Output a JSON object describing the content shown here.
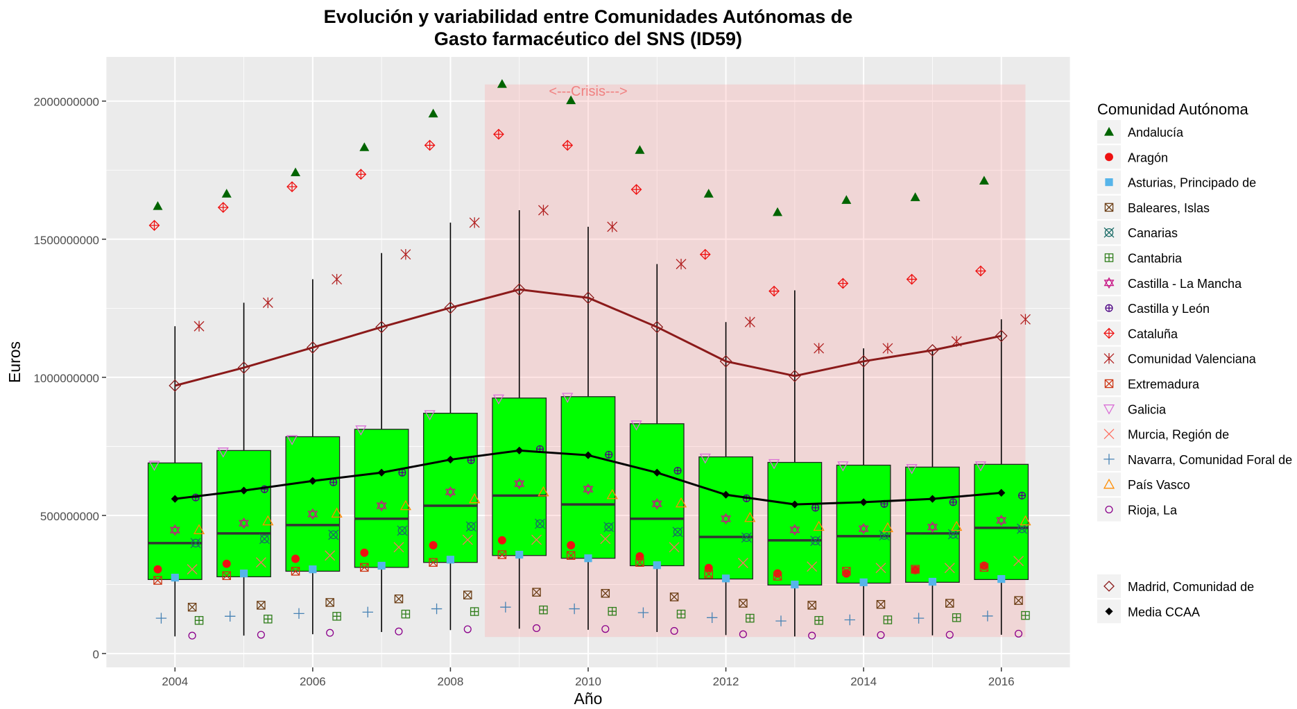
{
  "chart_data": {
    "type": "boxplot",
    "title_line1": "Evolución y variabilidad entre Comunidades Autónomas de",
    "title_line2": "Gasto farmacéutico del SNS (ID59)",
    "xlabel": "Año",
    "ylabel": "Euros",
    "xlim": [
      2003.0,
      2017.0
    ],
    "ylim": [
      -50000000,
      2160000000
    ],
    "x_ticks": [
      2004,
      2006,
      2008,
      2010,
      2012,
      2014,
      2016
    ],
    "y_ticks": [
      0,
      500000000,
      1000000000,
      1500000000,
      2000000000
    ],
    "y_tick_labels": [
      "0",
      "500000000",
      "1000000000",
      "1500000000",
      "2000000000"
    ],
    "crisis": {
      "label": "<---Crisis--->",
      "x_start": 2008.5,
      "x_end": 2016.35,
      "y_min": 60000000,
      "y_max": 2060000000
    },
    "years": [
      2004,
      2005,
      2006,
      2007,
      2008,
      2009,
      2010,
      2011,
      2012,
      2013,
      2014,
      2015,
      2016
    ],
    "boxes": [
      {
        "q1": 268000000,
        "median": 400000000,
        "q3": 690000000,
        "lower": 62000000,
        "upper": 1185000000
      },
      {
        "q1": 278000000,
        "median": 435000000,
        "q3": 735000000,
        "lower": 65000000,
        "upper": 1270000000
      },
      {
        "q1": 298000000,
        "median": 465000000,
        "q3": 785000000,
        "lower": 70000000,
        "upper": 1355000000
      },
      {
        "q1": 312000000,
        "median": 488000000,
        "q3": 812000000,
        "lower": 78000000,
        "upper": 1450000000
      },
      {
        "q1": 330000000,
        "median": 535000000,
        "q3": 870000000,
        "lower": 85000000,
        "upper": 1560000000
      },
      {
        "q1": 355000000,
        "median": 572000000,
        "q3": 925000000,
        "lower": 90000000,
        "upper": 1605000000
      },
      {
        "q1": 345000000,
        "median": 540000000,
        "q3": 930000000,
        "lower": 86000000,
        "upper": 1545000000
      },
      {
        "q1": 318000000,
        "median": 488000000,
        "q3": 832000000,
        "lower": 78000000,
        "upper": 1410000000
      },
      {
        "q1": 270000000,
        "median": 422000000,
        "q3": 712000000,
        "lower": 67000000,
        "upper": 1200000000
      },
      {
        "q1": 248000000,
        "median": 410000000,
        "q3": 692000000,
        "lower": 62000000,
        "upper": 1315000000
      },
      {
        "q1": 255000000,
        "median": 425000000,
        "q3": 682000000,
        "lower": 65000000,
        "upper": 1105000000
      },
      {
        "q1": 258000000,
        "median": 435000000,
        "q3": 675000000,
        "lower": 66000000,
        "upper": 1100000000
      },
      {
        "q1": 268000000,
        "median": 455000000,
        "q3": 685000000,
        "lower": 68000000,
        "upper": 1210000000
      }
    ],
    "legend_title": "Comunidad Autónoma",
    "series": [
      {
        "name": "Andalucía",
        "shape": "triangle-filled",
        "color": "#006400",
        "offset": -0.25,
        "values": [
          1620000000,
          1665000000,
          1742000000,
          1833000000,
          1955000000,
          2062000000,
          2003000000,
          1823000000,
          1665000000,
          1598000000,
          1642000000,
          1652000000,
          1712000000
        ]
      },
      {
        "name": "Aragón",
        "shape": "circle-filled",
        "color": "#ee1111",
        "offset": -0.25,
        "values": [
          305000000,
          325000000,
          343000000,
          365000000,
          392000000,
          410000000,
          392000000,
          352000000,
          310000000,
          290000000,
          290000000,
          302000000,
          318000000
        ]
      },
      {
        "name": "Asturias, Principado de",
        "shape": "square-filled",
        "color": "#56b4e9",
        "offset": 0.0,
        "values": [
          275000000,
          290000000,
          305000000,
          318000000,
          340000000,
          358000000,
          345000000,
          320000000,
          272000000,
          250000000,
          258000000,
          260000000,
          270000000
        ]
      },
      {
        "name": "Baleares, Islas",
        "shape": "square-x",
        "color": "#6b3d14",
        "offset": 0.25,
        "values": [
          168000000,
          175000000,
          185000000,
          198000000,
          212000000,
          222000000,
          218000000,
          205000000,
          182000000,
          175000000,
          178000000,
          182000000,
          192000000
        ]
      },
      {
        "name": "Canarias",
        "shape": "circle-x",
        "color": "#1a6b66",
        "offset": 0.3,
        "values": [
          400000000,
          415000000,
          430000000,
          445000000,
          460000000,
          470000000,
          458000000,
          440000000,
          420000000,
          408000000,
          428000000,
          432000000,
          452000000
        ]
      },
      {
        "name": "Cantabria",
        "shape": "square-plus",
        "color": "#2e7d1a",
        "offset": 0.35,
        "values": [
          120000000,
          125000000,
          135000000,
          143000000,
          152000000,
          158000000,
          153000000,
          143000000,
          128000000,
          120000000,
          122000000,
          130000000,
          138000000
        ]
      },
      {
        "name": "Castilla - La Mancha",
        "shape": "star-david",
        "color": "#c71585",
        "offset": 0.0,
        "values": [
          447000000,
          472000000,
          505000000,
          535000000,
          585000000,
          615000000,
          595000000,
          542000000,
          488000000,
          448000000,
          452000000,
          458000000,
          482000000
        ]
      },
      {
        "name": "Castilla y León",
        "shape": "circle-plus",
        "color": "#4b0082",
        "offset": 0.3,
        "values": [
          565000000,
          595000000,
          620000000,
          655000000,
          700000000,
          740000000,
          720000000,
          662000000,
          562000000,
          528000000,
          542000000,
          548000000,
          572000000
        ]
      },
      {
        "name": "Cataluña",
        "shape": "diamond-plus",
        "color": "#ee1111",
        "offset": -0.3,
        "values": [
          1550000000,
          1615000000,
          1690000000,
          1735000000,
          1840000000,
          1880000000,
          1840000000,
          1680000000,
          1445000000,
          1312000000,
          1340000000,
          1355000000,
          1385000000
        ]
      },
      {
        "name": "Comunidad Valenciana",
        "shape": "asterisk",
        "color": "#b22222",
        "offset": 0.35,
        "values": [
          1185000000,
          1270000000,
          1355000000,
          1445000000,
          1560000000,
          1605000000,
          1545000000,
          1410000000,
          1200000000,
          1105000000,
          1105000000,
          1130000000,
          1210000000
        ]
      },
      {
        "name": "Extremadura",
        "shape": "square-x",
        "color": "#cc3311",
        "offset": -0.25,
        "values": [
          265000000,
          282000000,
          298000000,
          312000000,
          330000000,
          358000000,
          355000000,
          330000000,
          288000000,
          280000000,
          298000000,
          305000000,
          312000000
        ]
      },
      {
        "name": "Galicia",
        "shape": "triangle-down",
        "color": "#da70d6",
        "offset": -0.3,
        "values": [
          682000000,
          730000000,
          775000000,
          810000000,
          865000000,
          922000000,
          928000000,
          828000000,
          708000000,
          688000000,
          680000000,
          670000000,
          680000000
        ]
      },
      {
        "name": "Murcia, Región de",
        "shape": "cross",
        "color": "#ff6f61",
        "offset": 0.25,
        "values": [
          305000000,
          330000000,
          355000000,
          385000000,
          412000000,
          412000000,
          415000000,
          385000000,
          328000000,
          315000000,
          310000000,
          310000000,
          335000000
        ]
      },
      {
        "name": "Navarra, Comunidad Foral de",
        "shape": "plus",
        "color": "#4682b4",
        "offset": -0.2,
        "values": [
          128000000,
          135000000,
          145000000,
          150000000,
          162000000,
          168000000,
          162000000,
          148000000,
          130000000,
          118000000,
          122000000,
          128000000,
          136000000
        ]
      },
      {
        "name": "País Vasco",
        "shape": "triangle-open",
        "color": "#ff8c00",
        "offset": 0.35,
        "values": [
          448000000,
          480000000,
          508000000,
          535000000,
          560000000,
          585000000,
          575000000,
          545000000,
          492000000,
          460000000,
          455000000,
          460000000,
          480000000
        ]
      },
      {
        "name": "Rioja, La",
        "shape": "circle-open",
        "color": "#8b008b",
        "offset": 0.25,
        "values": [
          65000000,
          68000000,
          75000000,
          80000000,
          88000000,
          92000000,
          89000000,
          82000000,
          70000000,
          65000000,
          67000000,
          68000000,
          72000000
        ]
      }
    ],
    "extra_legend": [
      {
        "name": "Madrid, Comunidad de",
        "shape": "diamond-open",
        "color": "#8b1a1a"
      },
      {
        "name": "Media CCAA",
        "shape": "diamond-filled",
        "color": "#000000"
      }
    ],
    "madrid_line": {
      "name": "Madrid, Comunidad de",
      "color": "#8b1a1a",
      "values": [
        970000000,
        1035000000,
        1108000000,
        1182000000,
        1252000000,
        1318000000,
        1288000000,
        1182000000,
        1058000000,
        1005000000,
        1058000000,
        1098000000,
        1150000000
      ]
    },
    "mean_line": {
      "name": "Media CCAA",
      "color": "#000000",
      "values": [
        560000000,
        590000000,
        625000000,
        655000000,
        702000000,
        735000000,
        718000000,
        655000000,
        575000000,
        540000000,
        548000000,
        560000000,
        582000000
      ]
    }
  }
}
